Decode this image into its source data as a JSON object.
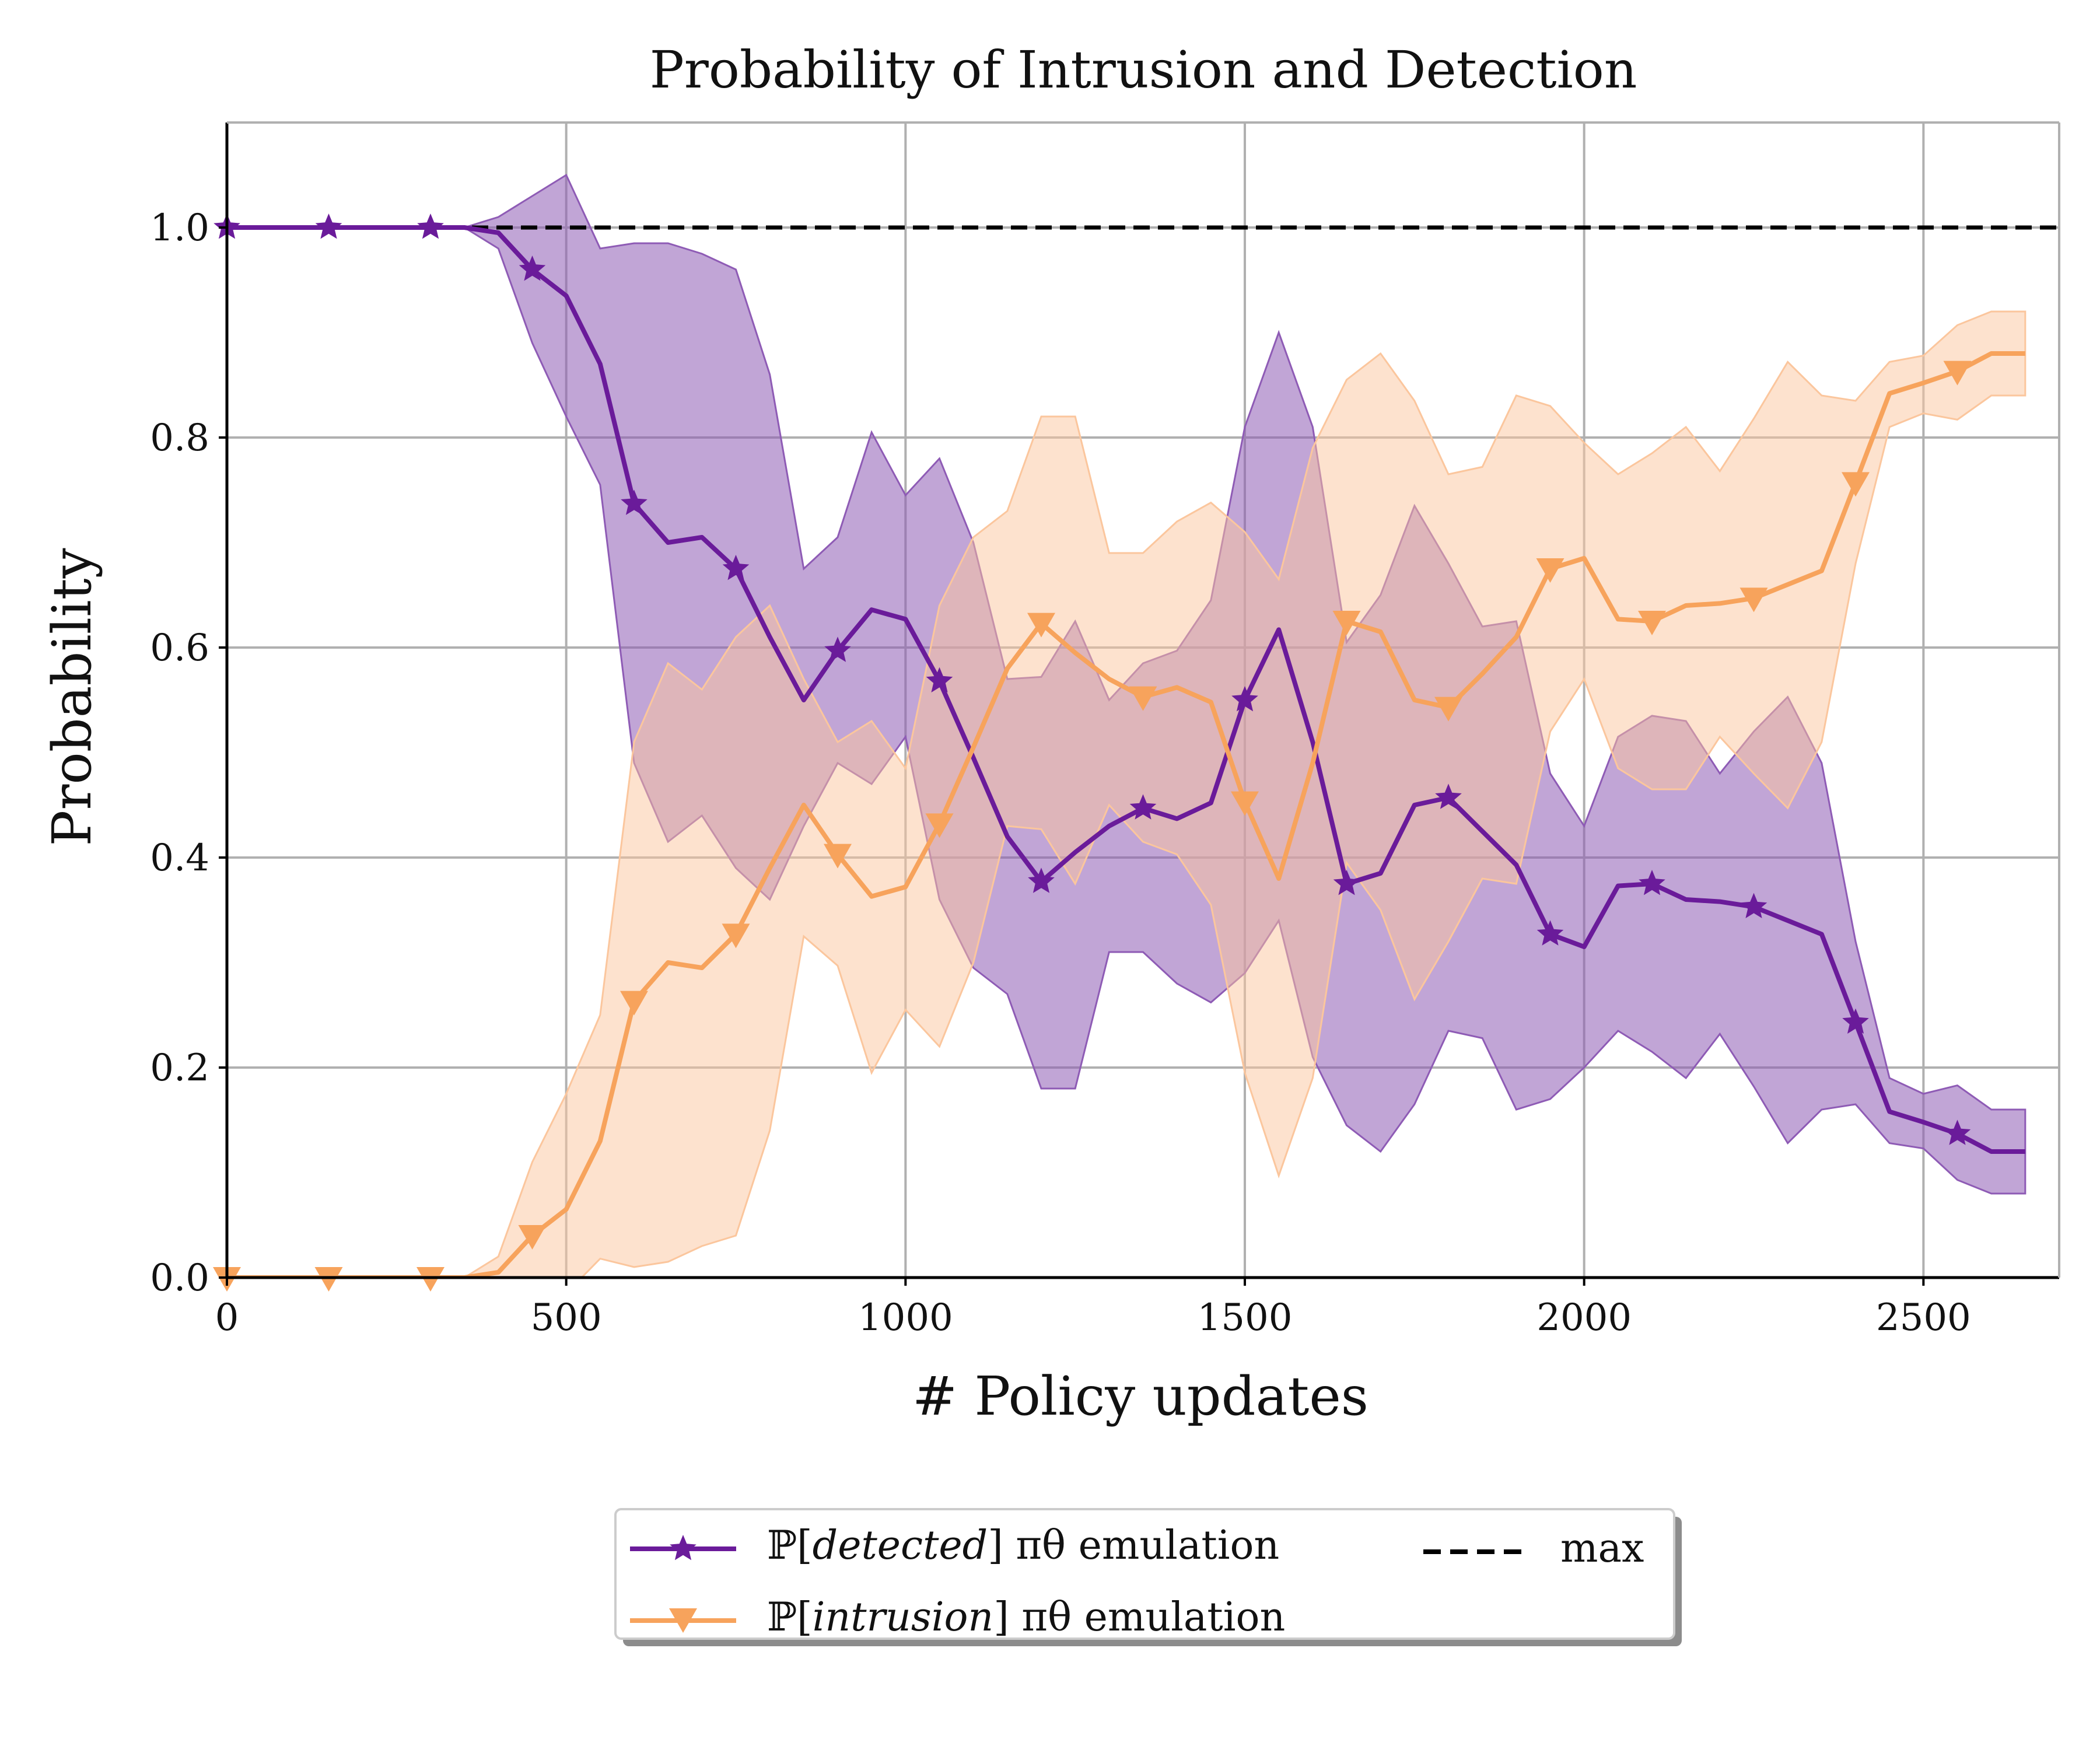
{
  "chart_data": {
    "type": "line",
    "title": "Probability of Intrusion and Detection",
    "xlabel": "# Policy updates",
    "ylabel": "Probability",
    "xlim": [
      0,
      2700
    ],
    "ylim": [
      0,
      1.1
    ],
    "xticks": [
      0,
      500,
      1000,
      1500,
      2000,
      2500
    ],
    "yticks": [
      0.0,
      0.2,
      0.4,
      0.6,
      0.8,
      1.0
    ],
    "xtick_labels": [
      "0",
      "500",
      "1000",
      "1500",
      "2000",
      "2500"
    ],
    "ytick_labels": [
      "0.0",
      "0.2",
      "0.4",
      "0.6",
      "0.8",
      "1.0"
    ],
    "grid": true,
    "legend_placement": "below plot, centered",
    "x": [
      0,
      50,
      100,
      150,
      200,
      250,
      300,
      350,
      400,
      450,
      500,
      550,
      600,
      650,
      700,
      750,
      800,
      850,
      900,
      950,
      1000,
      1050,
      1100,
      1150,
      1200,
      1250,
      1300,
      1350,
      1400,
      1450,
      1500,
      1550,
      1600,
      1650,
      1700,
      1750,
      1800,
      1850,
      1900,
      1950,
      2000,
      2050,
      2100,
      2150,
      2200,
      2250,
      2300,
      2350,
      2400,
      2450,
      2500,
      2550,
      2600,
      2650
    ],
    "series": [
      {
        "name_prefix": "ℙ[",
        "name_italic": "detected",
        "name_suffix": "] πθ emulation",
        "color": "#6a1b9a",
        "fill_color": "#8e5bb5",
        "marker": "star",
        "marker_every": 3,
        "values": [
          1.0,
          1.0,
          1.0,
          1.0,
          1.0,
          1.0,
          1.0,
          1.0,
          0.995,
          0.96,
          0.935,
          0.87,
          0.737,
          0.7,
          0.705,
          0.675,
          0.61,
          0.55,
          0.597,
          0.636,
          0.627,
          0.568,
          0.495,
          0.42,
          0.377,
          0.405,
          0.43,
          0.447,
          0.437,
          0.452,
          0.55,
          0.617,
          0.51,
          0.375,
          0.385,
          0.45,
          0.457,
          0.425,
          0.393,
          0.327,
          0.315,
          0.373,
          0.375,
          0.36,
          0.358,
          0.353,
          0.34,
          0.327,
          0.243,
          0.158,
          0.148,
          0.137,
          0.12,
          0.12
        ],
        "upper": [
          1.0,
          1.0,
          1.0,
          1.0,
          1.0,
          1.0,
          1.0,
          1.0,
          1.01,
          1.03,
          1.05,
          0.98,
          0.985,
          0.985,
          0.975,
          0.96,
          0.86,
          0.675,
          0.705,
          0.805,
          0.745,
          0.78,
          0.7,
          0.57,
          0.572,
          0.625,
          0.55,
          0.585,
          0.597,
          0.645,
          0.81,
          0.9,
          0.81,
          0.605,
          0.65,
          0.735,
          0.68,
          0.62,
          0.625,
          0.48,
          0.43,
          0.515,
          0.535,
          0.53,
          0.48,
          0.52,
          0.553,
          0.49,
          0.32,
          0.19,
          0.175,
          0.183,
          0.16,
          0.16
        ],
        "lower": [
          1.0,
          1.0,
          1.0,
          1.0,
          1.0,
          1.0,
          1.0,
          1.0,
          0.98,
          0.89,
          0.82,
          0.755,
          0.49,
          0.415,
          0.44,
          0.39,
          0.36,
          0.43,
          0.49,
          0.47,
          0.515,
          0.36,
          0.295,
          0.27,
          0.18,
          0.18,
          0.31,
          0.31,
          0.28,
          0.262,
          0.29,
          0.34,
          0.21,
          0.145,
          0.12,
          0.165,
          0.235,
          0.228,
          0.16,
          0.17,
          0.2,
          0.235,
          0.215,
          0.19,
          0.232,
          0.182,
          0.128,
          0.16,
          0.165,
          0.128,
          0.123,
          0.093,
          0.08,
          0.08
        ]
      },
      {
        "name_prefix": "ℙ[",
        "name_italic": "intrusion",
        "name_suffix": "] πθ emulation",
        "color": "#f7a35c",
        "fill_color": "#fbc69d",
        "marker": "triangle-down",
        "marker_every": 3,
        "values": [
          0.0,
          0.0,
          0.0,
          0.0,
          0.0,
          0.0,
          0.0,
          0.0,
          0.005,
          0.04,
          0.065,
          0.13,
          0.263,
          0.3,
          0.295,
          0.327,
          0.39,
          0.45,
          0.403,
          0.363,
          0.372,
          0.432,
          0.505,
          0.58,
          0.623,
          0.595,
          0.57,
          0.553,
          0.562,
          0.548,
          0.453,
          0.38,
          0.49,
          0.625,
          0.615,
          0.55,
          0.543,
          0.575,
          0.61,
          0.675,
          0.685,
          0.627,
          0.625,
          0.64,
          0.642,
          0.647,
          0.66,
          0.673,
          0.757,
          0.842,
          0.852,
          0.863,
          0.88,
          0.88
        ],
        "upper": [
          0.0,
          0.0,
          0.0,
          0.0,
          0.0,
          0.0,
          0.0,
          0.0,
          0.02,
          0.11,
          0.175,
          0.25,
          0.51,
          0.585,
          0.56,
          0.61,
          0.64,
          0.57,
          0.51,
          0.53,
          0.485,
          0.64,
          0.705,
          0.73,
          0.82,
          0.82,
          0.69,
          0.69,
          0.72,
          0.738,
          0.71,
          0.665,
          0.79,
          0.855,
          0.88,
          0.835,
          0.765,
          0.772,
          0.84,
          0.83,
          0.795,
          0.765,
          0.785,
          0.81,
          0.768,
          0.818,
          0.872,
          0.84,
          0.835,
          0.872,
          0.878,
          0.907,
          0.92,
          0.92
        ],
        "lower": [
          0.0,
          0.0,
          0.0,
          0.0,
          0.0,
          0.0,
          0.0,
          0.0,
          -0.01,
          -0.01,
          -0.015,
          0.018,
          0.01,
          0.015,
          0.03,
          0.04,
          0.14,
          0.325,
          0.297,
          0.195,
          0.255,
          0.22,
          0.3,
          0.43,
          0.427,
          0.375,
          0.45,
          0.415,
          0.403,
          0.355,
          0.195,
          0.097,
          0.19,
          0.395,
          0.35,
          0.265,
          0.32,
          0.38,
          0.375,
          0.52,
          0.57,
          0.485,
          0.465,
          0.465,
          0.515,
          0.48,
          0.447,
          0.51,
          0.68,
          0.81,
          0.823,
          0.817,
          0.84,
          0.84
        ]
      },
      {
        "name": "max",
        "color": "#000000",
        "style": "dashed",
        "value": 1.0
      }
    ]
  }
}
